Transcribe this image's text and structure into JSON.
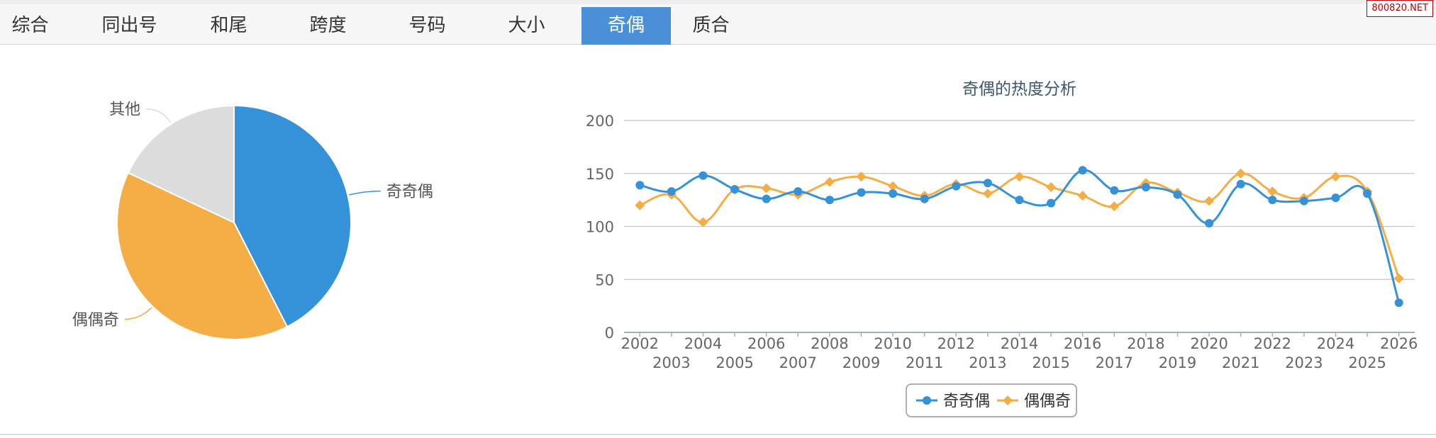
{
  "tabs": [
    {
      "label": "综合",
      "active": false
    },
    {
      "label": "同出号",
      "active": false
    },
    {
      "label": "和尾",
      "active": false
    },
    {
      "label": "跨度",
      "active": false
    },
    {
      "label": "号码",
      "active": false
    },
    {
      "label": "大小",
      "active": false
    },
    {
      "label": "奇偶",
      "active": true
    },
    {
      "label": "质合",
      "active": false
    }
  ],
  "brand": {
    "text": "800820.NET"
  },
  "colors": {
    "blue": "#3592d9",
    "orange": "#f5ad45",
    "gray": "#dcdcdc",
    "active_tab": "#4a90d9"
  },
  "chart_data": [
    {
      "type": "pie",
      "slices": [
        {
          "label": "奇奇偶",
          "value": 42.5,
          "color": "#3592d9"
        },
        {
          "label": "偶偶奇",
          "value": 39.5,
          "color": "#f5ad45"
        },
        {
          "label": "其他",
          "value": 18.0,
          "color": "#dcdcdc"
        }
      ]
    },
    {
      "type": "line",
      "title": "奇偶的热度分析",
      "x": [
        "2002",
        "2003",
        "2004",
        "2005",
        "2006",
        "2007",
        "2008",
        "2009",
        "2010",
        "2011",
        "2012",
        "2013",
        "2014",
        "2015",
        "2016",
        "2017",
        "2018",
        "2019",
        "2020",
        "2021",
        "2022",
        "2023",
        "2024",
        "2025",
        "2026"
      ],
      "ylim": [
        0,
        200
      ],
      "yticks": [
        0,
        50,
        100,
        150,
        200
      ],
      "grid": true,
      "legend": "bottom-center",
      "series": [
        {
          "name": "奇奇偶",
          "color": "#3592d9",
          "marker": "circle",
          "values": [
            139,
            133,
            148,
            135,
            126,
            133,
            125,
            132,
            131,
            126,
            138,
            141,
            125,
            122,
            153,
            134,
            137,
            130,
            103,
            140,
            125,
            124,
            127,
            131,
            28
          ]
        },
        {
          "name": "偶偶奇",
          "color": "#f5ad45",
          "marker": "diamond",
          "values": [
            120,
            130,
            104,
            135,
            136,
            130,
            142,
            147,
            138,
            129,
            140,
            131,
            147,
            137,
            129,
            119,
            141,
            132,
            124,
            150,
            133,
            127,
            147,
            133,
            51
          ]
        }
      ]
    }
  ]
}
